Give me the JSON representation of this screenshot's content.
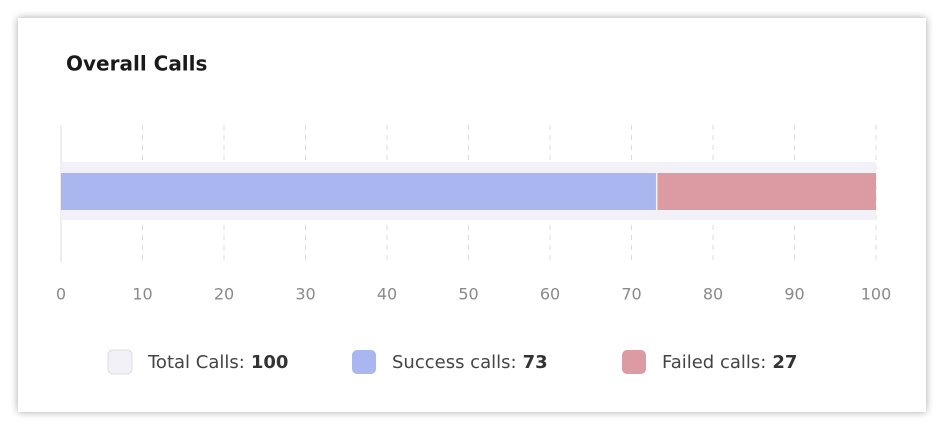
{
  "chart_data": {
    "type": "stacked-bar",
    "title": "Overall Calls",
    "total": {
      "name": "Total Calls:",
      "color": "#f1f1f7",
      "values": [
        100
      ]
    },
    "series": [
      {
        "name": "Success calls:",
        "color": "#aab6f0",
        "values": [
          73
        ]
      },
      {
        "name": "Failed calls:",
        "color": "#dc9aa2",
        "values": [
          27
        ]
      }
    ],
    "xlim": [
      0,
      100
    ],
    "xticks": [
      0,
      10,
      20,
      30,
      40,
      50,
      60,
      70,
      80,
      90,
      100
    ],
    "grid": true
  }
}
